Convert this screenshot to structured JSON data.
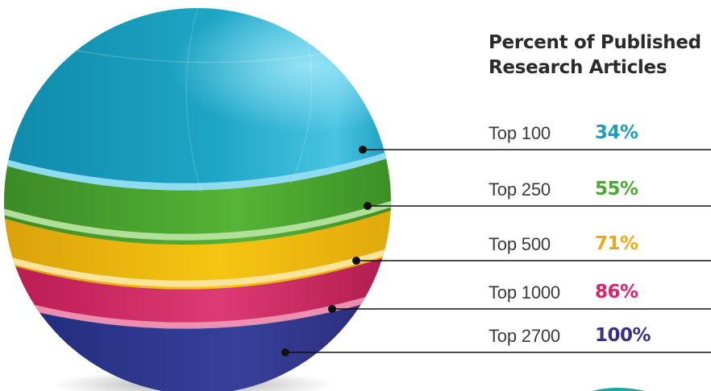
{
  "chart_data": {
    "type": "table",
    "title": "Percent of Published Research Articles",
    "categories": [
      "Top 100",
      "Top 250",
      "Top 500",
      "Top 1000",
      "Top 2700"
    ],
    "values": [
      "34%",
      "55%",
      "71%",
      "86%",
      "100%"
    ],
    "value_numbers": [
      34,
      55,
      71,
      86,
      100
    ],
    "colors": [
      "#1a9fbd",
      "#4aa832",
      "#f0a818",
      "#e0206a",
      "#3b2f8c"
    ]
  }
}
